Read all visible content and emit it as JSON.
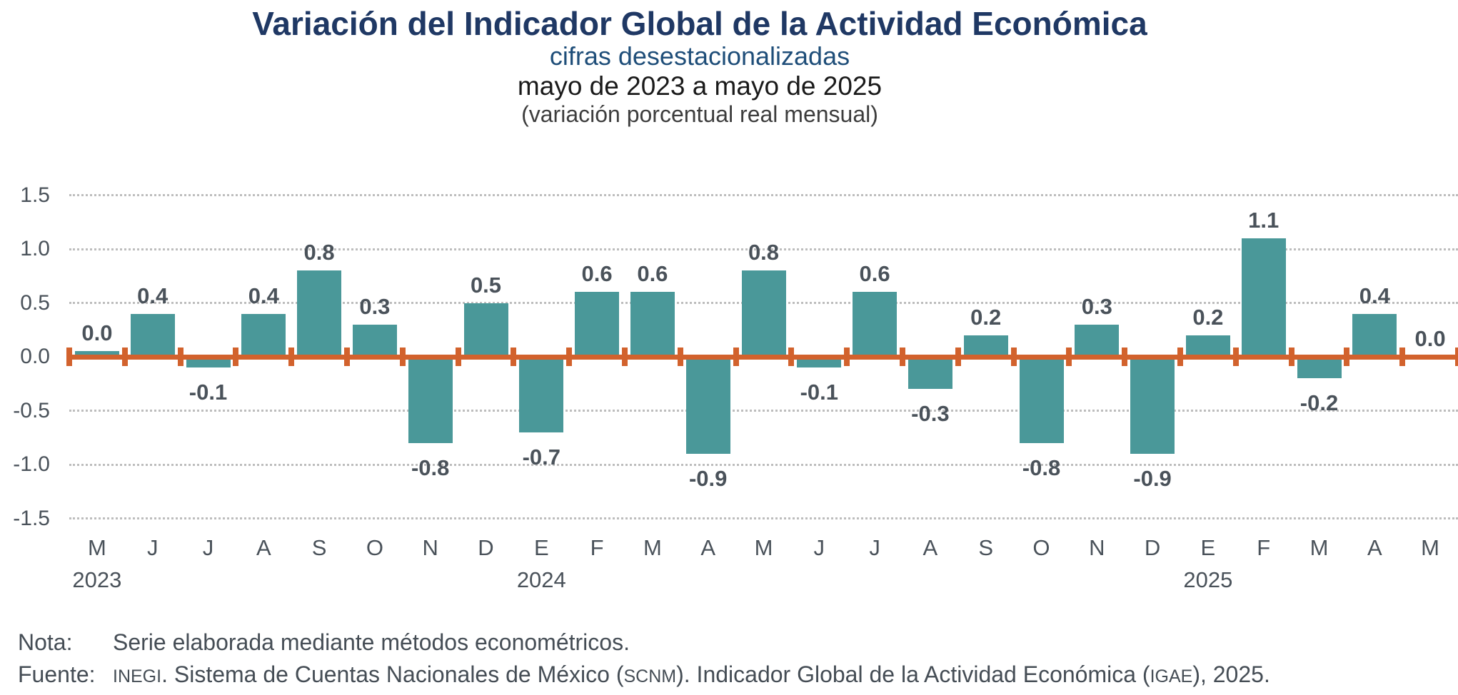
{
  "header": {
    "title": "Variación del Indicador Global de la Actividad Económica",
    "subtitle": "cifras desestacionalizadas",
    "period": "mayo de 2023 a mayo de 2025",
    "units": "(variación porcentual real mensual)"
  },
  "chart_data": {
    "type": "bar",
    "title": "Variación del Indicador Global de la Actividad Económica",
    "subtitle": "cifras desestacionalizadas, mayo de 2023 a mayo de 2025",
    "ylabel": "variación porcentual real mensual",
    "categories": [
      "M",
      "J",
      "J",
      "A",
      "S",
      "O",
      "N",
      "D",
      "E",
      "F",
      "M",
      "A",
      "M",
      "J",
      "J",
      "A",
      "S",
      "O",
      "N",
      "D",
      "E",
      "F",
      "M",
      "A",
      "M"
    ],
    "values": [
      0.0,
      0.4,
      -0.1,
      0.4,
      0.8,
      0.3,
      -0.8,
      0.5,
      -0.7,
      0.6,
      0.6,
      -0.9,
      0.8,
      -0.1,
      0.6,
      -0.3,
      0.2,
      -0.8,
      0.3,
      -0.9,
      0.2,
      1.1,
      -0.2,
      0.4,
      0.0
    ],
    "year_markers": [
      {
        "index": 0,
        "label": "2023"
      },
      {
        "index": 8,
        "label": "2024"
      },
      {
        "index": 20,
        "label": "2025"
      }
    ],
    "y_ticks": [
      1.5,
      1.0,
      0.5,
      0.0,
      -0.5,
      -1.0,
      -1.5
    ],
    "ylim": [
      -1.5,
      1.5
    ],
    "grid": "horizontal dotted, zero axis highlighted",
    "legend": "none",
    "bar_color": "#4A9899",
    "zero_line_color": "#D2622D",
    "label_color": "#4A525A",
    "gridline_color": "#BDBDBD"
  },
  "footer": {
    "note_label": "Nota:",
    "note_text": "Serie elaborada mediante métodos econométricos.",
    "source_label": "Fuente:",
    "source_parts": [
      {
        "text": "INEGI",
        "small_caps": true
      },
      {
        "text": ". Sistema de Cuentas Nacionales de México (",
        "small_caps": false
      },
      {
        "text": "SCNM",
        "small_caps": true
      },
      {
        "text": "). Indicador Global de la Actividad Económica (",
        "small_caps": false
      },
      {
        "text": "IGAE",
        "small_caps": true
      },
      {
        "text": "), 2025.",
        "small_caps": false
      }
    ]
  }
}
